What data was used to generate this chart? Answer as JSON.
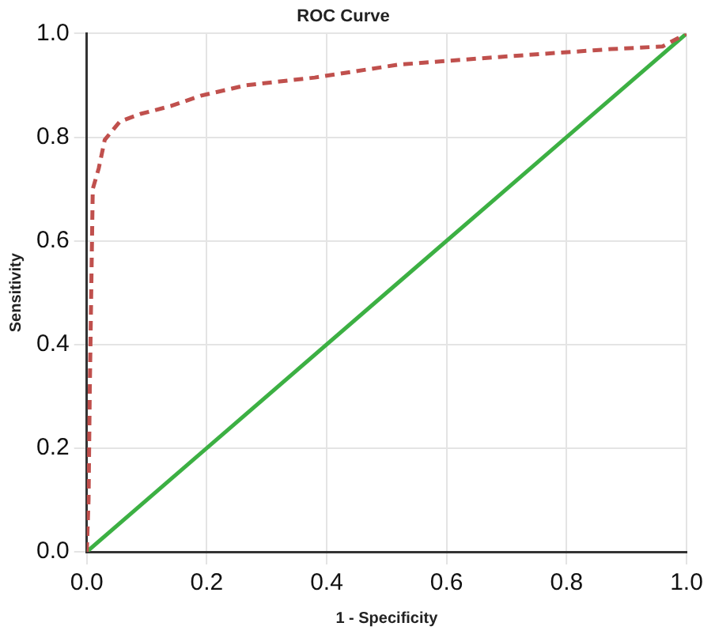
{
  "chart_data": {
    "type": "line",
    "title": "ROC Curve",
    "xlabel": "1 - Specificity",
    "ylabel": "Sensitivity",
    "xlim": [
      0,
      1
    ],
    "ylim": [
      0,
      1
    ],
    "xticks": [
      {
        "value": 0,
        "label": "0.0"
      },
      {
        "value": 0.2,
        "label": "0.2"
      },
      {
        "value": 0.4,
        "label": "0.4"
      },
      {
        "value": 0.6,
        "label": "0.6"
      },
      {
        "value": 0.8,
        "label": "0.8"
      },
      {
        "value": 1,
        "label": "1.0"
      }
    ],
    "yticks": [
      {
        "value": 0,
        "label": "0.0"
      },
      {
        "value": 0.2,
        "label": "0.2"
      },
      {
        "value": 0.4,
        "label": "0.4"
      },
      {
        "value": 0.6,
        "label": "0.6"
      },
      {
        "value": 0.8,
        "label": "0.8"
      },
      {
        "value": 1,
        "label": "1.0"
      }
    ],
    "grid": true,
    "legend": false,
    "marker": "none",
    "series": [
      {
        "color": "#c0504d",
        "line_style": "dashed",
        "x": [
          0,
          0.003,
          0.005,
          0.01,
          0.02,
          0.03,
          0.055,
          0.09,
          0.14,
          0.19,
          0.265,
          0.38,
          0.52,
          0.69,
          0.875,
          0.96,
          1
        ],
        "values": [
          0,
          0.1,
          0.31,
          0.7,
          0.74,
          0.795,
          0.83,
          0.845,
          0.86,
          0.88,
          0.9,
          0.915,
          0.94,
          0.955,
          0.97,
          0.975,
          1
        ]
      },
      {
        "color": "#3cb043",
        "line_style": "solid",
        "x": [
          0,
          1
        ],
        "values": [
          0,
          1
        ]
      }
    ]
  }
}
